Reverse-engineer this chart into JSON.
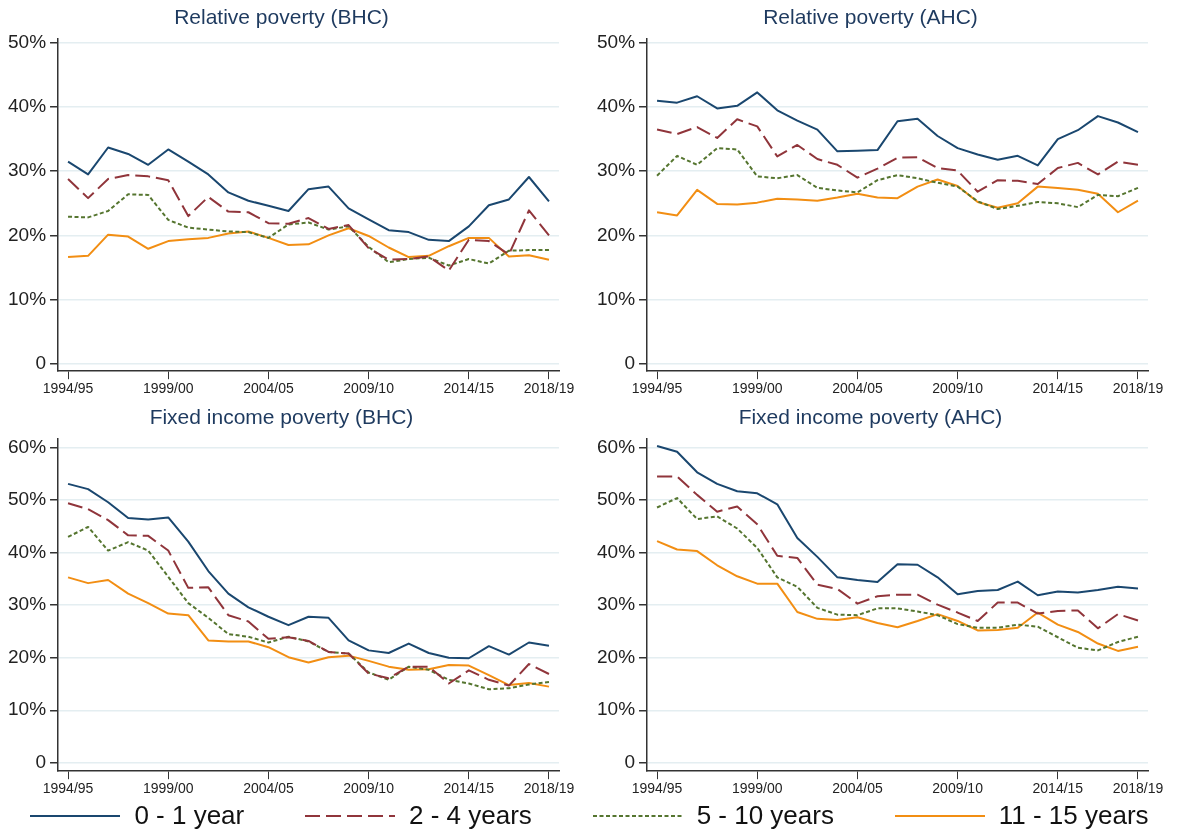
{
  "chart_data": [
    {
      "type": "line",
      "title": "Relative poverty (BHC)",
      "categories": [
        "1994/95",
        null,
        null,
        null,
        null,
        "1999/00",
        null,
        null,
        null,
        null,
        "2004/05",
        null,
        null,
        null,
        null,
        "2009/10",
        null,
        null,
        null,
        null,
        "2014/15",
        null,
        null,
        null,
        "2018/19"
      ],
      "ylim": [
        -1.2,
        50.6
      ],
      "yticks": [
        {
          "value": 0,
          "label": "0"
        },
        {
          "value": 10,
          "label": "10%"
        },
        {
          "value": 20,
          "label": "20%"
        },
        {
          "value": 30,
          "label": "30%"
        },
        {
          "value": 40,
          "label": "40%"
        },
        {
          "value": 50,
          "label": "50%"
        }
      ],
      "grid": "y",
      "legend": "bottom",
      "marker": "none",
      "series": [
        {
          "name": "0 - 1 year",
          "color": "#1a476f",
          "line_style": "solid",
          "values": [
            31.5,
            29.5,
            33.7,
            32.7,
            31,
            33.4,
            31.5,
            29.5,
            26.7,
            25.4,
            24.6,
            23.8,
            27.2,
            27.6,
            24.2,
            22.5,
            20.8,
            20.5,
            19.3,
            19.1,
            21.4,
            24.7,
            25.6,
            29.1,
            25.3
          ]
        },
        {
          "name": "2 - 4 years",
          "color": "#90353b",
          "line_style": "dashed",
          "values": [
            28.8,
            25.8,
            28.8,
            29.4,
            29.2,
            28.6,
            23,
            26,
            23.7,
            23.6,
            21.9,
            21.8,
            22.7,
            21,
            21.6,
            18,
            16.2,
            16.3,
            16.7,
            14.5,
            19.3,
            19.1,
            17,
            23.9,
            20
          ]
        },
        {
          "name": "5 - 10 years",
          "color": "#55752f",
          "line_style": "dotted",
          "values": [
            22.9,
            22.8,
            23.8,
            26.4,
            26.3,
            22.4,
            21.2,
            20.9,
            20.6,
            20.5,
            19.6,
            21.7,
            22,
            20.9,
            21.4,
            18.2,
            15.8,
            16.3,
            16.5,
            15.3,
            16.3,
            15.6,
            17.6,
            17.7,
            17.7
          ]
        },
        {
          "name": "11 - 15 years",
          "color": "#f28e13",
          "line_style": "solid",
          "values": [
            16.6,
            16.8,
            20.1,
            19.8,
            17.9,
            19.1,
            19.4,
            19.6,
            20.3,
            20.6,
            19.6,
            18.5,
            18.6,
            20,
            21.1,
            19.9,
            18.1,
            16.6,
            16.8,
            18.3,
            19.6,
            19.6,
            16.7,
            16.9,
            16.2
          ]
        }
      ]
    },
    {
      "type": "line",
      "title": "Relative poverty (AHC)",
      "categories": [
        "1994/95",
        null,
        null,
        null,
        null,
        "1999/00",
        null,
        null,
        null,
        null,
        "2004/05",
        null,
        null,
        null,
        null,
        "2009/10",
        null,
        null,
        null,
        null,
        "2014/15",
        null,
        null,
        null,
        "2018/19"
      ],
      "ylim": [
        -1.2,
        50.6
      ],
      "yticks": [
        {
          "value": 0,
          "label": "0"
        },
        {
          "value": 10,
          "label": "10%"
        },
        {
          "value": 20,
          "label": "20%"
        },
        {
          "value": 30,
          "label": "30%"
        },
        {
          "value": 40,
          "label": "40%"
        },
        {
          "value": 50,
          "label": "50%"
        }
      ],
      "grid": "y",
      "marker": "none",
      "series": [
        {
          "color": "#1a476f",
          "line_style": "solid",
          "values": [
            41,
            40.7,
            41.7,
            39.8,
            40.2,
            42.3,
            39.5,
            37.9,
            36.5,
            33.1,
            33.2,
            33.3,
            37.8,
            38.2,
            35.5,
            33.6,
            32.6,
            31.8,
            32.4,
            30.9,
            35,
            36.4,
            38.6,
            37.6,
            36.1
          ]
        },
        {
          "color": "#90353b",
          "line_style": "dashed",
          "values": [
            36.5,
            35.8,
            36.9,
            35.2,
            38.1,
            37,
            32.3,
            34.1,
            31.9,
            31,
            29,
            30.4,
            32.1,
            32.2,
            30.5,
            30.1,
            26.8,
            28.6,
            28.5,
            28,
            30.5,
            31.3,
            29.5,
            31.5,
            31
          ]
        },
        {
          "color": "#55752f",
          "line_style": "dotted",
          "values": [
            29.3,
            32.4,
            31,
            33.6,
            33.4,
            29.2,
            28.9,
            29.4,
            27.4,
            27,
            26.7,
            28.6,
            29.4,
            28.9,
            28.2,
            27.6,
            25.3,
            24.1,
            24.6,
            25.2,
            25,
            24.4,
            26.3,
            26.1,
            27.4
          ]
        },
        {
          "color": "#f28e13",
          "line_style": "solid",
          "values": [
            23.6,
            23.1,
            27.1,
            24.9,
            24.8,
            25.1,
            25.7,
            25.6,
            25.4,
            25.9,
            26.5,
            25.9,
            25.8,
            27.6,
            28.7,
            27.7,
            25.2,
            24.3,
            25,
            27.6,
            27.4,
            27.1,
            26.5,
            23.6,
            25.4
          ]
        }
      ]
    },
    {
      "type": "line",
      "title": "Fixed income poverty (BHC)",
      "categories": [
        "1994/95",
        null,
        null,
        null,
        null,
        "1999/00",
        null,
        null,
        null,
        null,
        "2004/05",
        null,
        null,
        null,
        null,
        "2009/10",
        null,
        null,
        null,
        null,
        "2014/15",
        null,
        null,
        null,
        "2018/19"
      ],
      "ylim": [
        -1.6,
        61.6
      ],
      "yticks": [
        {
          "value": 0,
          "label": "0"
        },
        {
          "value": 10,
          "label": "10%"
        },
        {
          "value": 20,
          "label": "20%"
        },
        {
          "value": 30,
          "label": "30%"
        },
        {
          "value": 40,
          "label": "40%"
        },
        {
          "value": 50,
          "label": "50%"
        },
        {
          "value": 60,
          "label": "60%"
        }
      ],
      "grid": "y",
      "marker": "none",
      "series": [
        {
          "color": "#1a476f",
          "line_style": "solid",
          "values": [
            53.1,
            52.1,
            49.6,
            46.6,
            46.3,
            46.7,
            42.1,
            36.5,
            32.2,
            29.6,
            27.8,
            26.2,
            27.8,
            27.6,
            23.3,
            21.4,
            20.9,
            22.7,
            20.9,
            20,
            19.9,
            22.2,
            20.6,
            22.9,
            22.3
          ]
        },
        {
          "color": "#90353b",
          "line_style": "dashed",
          "values": [
            49.4,
            48.3,
            46.2,
            43.3,
            43.2,
            40.4,
            33.3,
            33.4,
            28.1,
            26.9,
            23.6,
            23.9,
            23.2,
            21.1,
            20.8,
            17,
            16.1,
            18.3,
            18.3,
            15.1,
            17.6,
            15.8,
            14.7,
            18.8,
            16.9
          ]
        },
        {
          "color": "#55752f",
          "line_style": "dotted",
          "values": [
            43,
            44.9,
            40.4,
            42,
            40.4,
            35.4,
            30.4,
            27.6,
            24.5,
            24,
            22.9,
            24,
            23.1,
            21.1,
            20.8,
            17.2,
            15.8,
            18.3,
            17.7,
            15.8,
            15.1,
            14,
            14.2,
            14.9,
            15.4
          ]
        },
        {
          "color": "#f28e13",
          "line_style": "solid",
          "values": [
            35.3,
            34.2,
            34.8,
            32.2,
            30.4,
            28.4,
            28.1,
            23.3,
            23.1,
            23.1,
            22,
            20.1,
            19.1,
            20.1,
            20.4,
            19.4,
            18.3,
            17.7,
            17.8,
            18.6,
            18.5,
            16.7,
            14.8,
            15.2,
            14.5
          ]
        }
      ]
    },
    {
      "type": "line",
      "title": "Fixed income poverty (AHC)",
      "categories": [
        "1994/95",
        null,
        null,
        null,
        null,
        "1999/00",
        null,
        null,
        null,
        null,
        "2004/05",
        null,
        null,
        null,
        null,
        "2009/10",
        null,
        null,
        null,
        null,
        "2014/15",
        null,
        null,
        null,
        "2018/19"
      ],
      "ylim": [
        -1.6,
        61.6
      ],
      "yticks": [
        {
          "value": 0,
          "label": "0"
        },
        {
          "value": 10,
          "label": "10%"
        },
        {
          "value": 20,
          "label": "20%"
        },
        {
          "value": 30,
          "label": "30%"
        },
        {
          "value": 40,
          "label": "40%"
        },
        {
          "value": 50,
          "label": "50%"
        },
        {
          "value": 60,
          "label": "60%"
        }
      ],
      "grid": "y",
      "marker": "none",
      "series": [
        {
          "color": "#1a476f",
          "line_style": "solid",
          "values": [
            60.3,
            59.2,
            55.3,
            53.1,
            51.7,
            51.3,
            49.2,
            42.8,
            39.2,
            35.3,
            34.8,
            34.4,
            37.8,
            37.7,
            35.3,
            32.1,
            32.7,
            32.9,
            34.5,
            31.9,
            32.6,
            32.4,
            32.9,
            33.5,
            33.2
          ]
        },
        {
          "color": "#90353b",
          "line_style": "dashed",
          "values": [
            54.5,
            54.5,
            51,
            47.8,
            48.8,
            45.4,
            39.4,
            39,
            33.9,
            33.1,
            30.3,
            31.7,
            32,
            32,
            30.1,
            28.6,
            27,
            30.5,
            30.5,
            28.4,
            28.9,
            29,
            25.6,
            28.3,
            27.1
          ]
        },
        {
          "color": "#55752f",
          "line_style": "dotted",
          "values": [
            48.6,
            50.4,
            46.4,
            46.9,
            44.6,
            40.9,
            35.3,
            33.5,
            29.5,
            28.2,
            28.1,
            29.4,
            29.4,
            28.8,
            28.1,
            26.4,
            25.7,
            25.7,
            26.3,
            25.9,
            23.9,
            21.9,
            21.4,
            23,
            24
          ]
        },
        {
          "color": "#f28e13",
          "line_style": "solid",
          "values": [
            42.2,
            40.6,
            40.3,
            37.6,
            35.5,
            34.1,
            34.1,
            28.7,
            27.4,
            27.2,
            27.7,
            26.6,
            25.8,
            27,
            28.3,
            27,
            25.2,
            25.3,
            25.7,
            28.6,
            26.3,
            24.9,
            22.7,
            21.3,
            22.1
          ]
        }
      ]
    }
  ]
}
